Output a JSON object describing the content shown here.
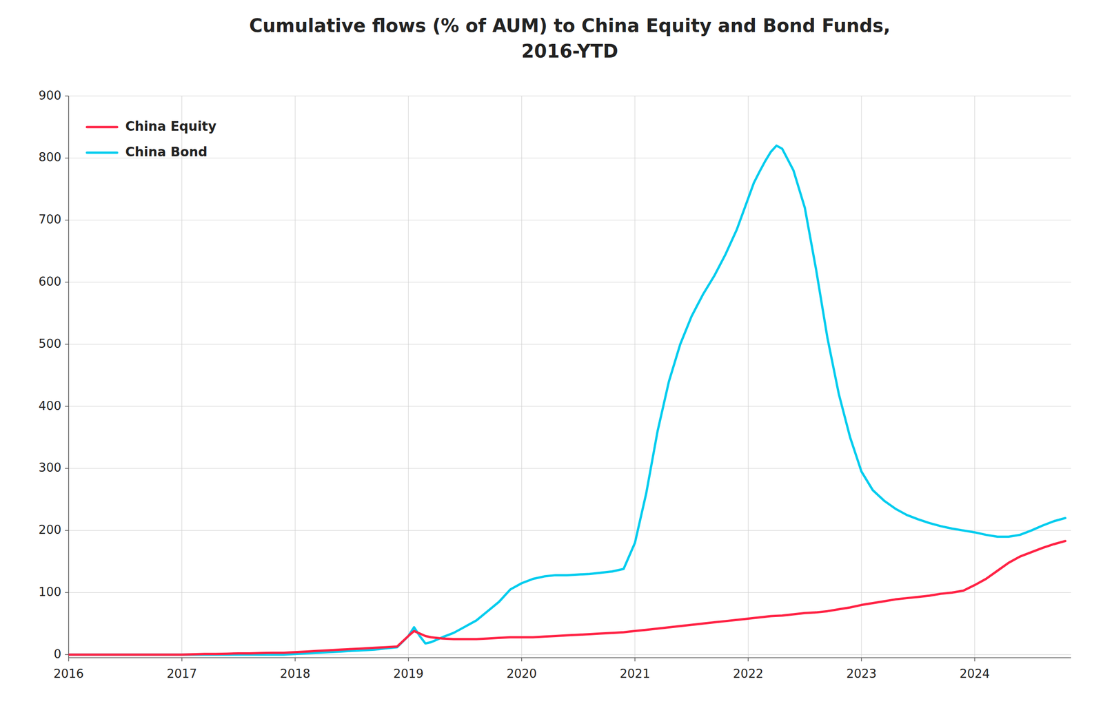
{
  "chart_data": {
    "type": "line",
    "title": "Cumulative flows (% of AUM) to China Equity and Bond Funds,\n2016-YTD",
    "xlim": [
      2016.0,
      2024.85
    ],
    "xticks": [
      2016,
      2017,
      2018,
      2019,
      2020,
      2021,
      2022,
      2023,
      2024
    ],
    "ylim": [
      -5,
      900
    ],
    "yticks": [
      0,
      100,
      200,
      300,
      400,
      500,
      600,
      700,
      800,
      900
    ],
    "grid": true,
    "legend": "upper left",
    "series": [
      {
        "name": "China Equity",
        "color": "#ff2244",
        "x": [
          2016.0,
          2016.1,
          2016.2,
          2016.3,
          2016.4,
          2016.5,
          2016.6,
          2016.7,
          2016.8,
          2016.9,
          2017.0,
          2017.1,
          2017.2,
          2017.3,
          2017.4,
          2017.5,
          2017.6,
          2017.7,
          2017.8,
          2017.9,
          2018.0,
          2018.1,
          2018.2,
          2018.3,
          2018.4,
          2018.5,
          2018.6,
          2018.7,
          2018.8,
          2018.9,
          2019.0,
          2019.05,
          2019.1,
          2019.15,
          2019.2,
          2019.3,
          2019.4,
          2019.5,
          2019.6,
          2019.7,
          2019.8,
          2019.9,
          2020.0,
          2020.1,
          2020.2,
          2020.3,
          2020.4,
          2020.5,
          2020.6,
          2020.7,
          2020.8,
          2020.9,
          2021.0,
          2021.1,
          2021.2,
          2021.3,
          2021.4,
          2021.5,
          2021.6,
          2021.7,
          2021.8,
          2021.9,
          2022.0,
          2022.1,
          2022.2,
          2022.3,
          2022.4,
          2022.5,
          2022.6,
          2022.7,
          2022.8,
          2022.9,
          2023.0,
          2023.1,
          2023.2,
          2023.3,
          2023.4,
          2023.5,
          2023.6,
          2023.7,
          2023.8,
          2023.9,
          2024.0,
          2024.1,
          2024.2,
          2024.3,
          2024.4,
          2024.5,
          2024.6,
          2024.7,
          2024.8
        ],
        "values": [
          0,
          0,
          0,
          0,
          0,
          0,
          0,
          0,
          0,
          0,
          0,
          0.5,
          1,
          1,
          1.5,
          2,
          2,
          2.5,
          3,
          3,
          4,
          5,
          6,
          7,
          8,
          9,
          10,
          11,
          12,
          13,
          30,
          38,
          34,
          30,
          28,
          26,
          25,
          25,
          25,
          26,
          27,
          28,
          28,
          28,
          29,
          30,
          31,
          32,
          33,
          34,
          35,
          36,
          38,
          40,
          42,
          44,
          46,
          48,
          50,
          52,
          54,
          56,
          58,
          60,
          62,
          63,
          65,
          67,
          68,
          70,
          73,
          76,
          80,
          83,
          86,
          89,
          91,
          93,
          95,
          98,
          100,
          103,
          112,
          122,
          135,
          148,
          158,
          165,
          172,
          178,
          183
        ]
      },
      {
        "name": "China Bond",
        "color": "#00ccee",
        "x": [
          2016.0,
          2016.1,
          2016.2,
          2016.3,
          2016.4,
          2016.5,
          2016.6,
          2016.7,
          2016.8,
          2016.9,
          2017.0,
          2017.1,
          2017.2,
          2017.3,
          2017.4,
          2017.5,
          2017.6,
          2017.7,
          2017.8,
          2017.9,
          2018.0,
          2018.1,
          2018.2,
          2018.3,
          2018.4,
          2018.5,
          2018.6,
          2018.7,
          2018.8,
          2018.9,
          2019.0,
          2019.05,
          2019.1,
          2019.15,
          2019.2,
          2019.25,
          2019.3,
          2019.4,
          2019.5,
          2019.6,
          2019.7,
          2019.8,
          2019.9,
          2020.0,
          2020.1,
          2020.2,
          2020.3,
          2020.4,
          2020.5,
          2020.6,
          2020.7,
          2020.8,
          2020.9,
          2021.0,
          2021.1,
          2021.2,
          2021.3,
          2021.4,
          2021.5,
          2021.6,
          2021.7,
          2021.8,
          2021.9,
          2022.0,
          2022.05,
          2022.1,
          2022.15,
          2022.2,
          2022.25,
          2022.3,
          2022.4,
          2022.5,
          2022.6,
          2022.7,
          2022.8,
          2022.9,
          2023.0,
          2023.1,
          2023.2,
          2023.3,
          2023.4,
          2023.5,
          2023.6,
          2023.7,
          2023.8,
          2023.9,
          2024.0,
          2024.1,
          2024.2,
          2024.3,
          2024.4,
          2024.5,
          2024.6,
          2024.7,
          2024.8
        ],
        "values": [
          0,
          0,
          0,
          0,
          0,
          0,
          0,
          0,
          0,
          0,
          0,
          0,
          0,
          0,
          0,
          0,
          0,
          0,
          0,
          0,
          1,
          2,
          3,
          4,
          5,
          6,
          7,
          8,
          10,
          12,
          30,
          44,
          30,
          18,
          20,
          24,
          28,
          35,
          45,
          55,
          70,
          85,
          105,
          115,
          122,
          126,
          128,
          128,
          129,
          130,
          132,
          134,
          138,
          180,
          260,
          360,
          440,
          500,
          545,
          580,
          610,
          645,
          685,
          735,
          760,
          778,
          795,
          810,
          820,
          815,
          780,
          720,
          620,
          510,
          420,
          350,
          295,
          265,
          248,
          235,
          225,
          218,
          212,
          207,
          203,
          200,
          197,
          193,
          190,
          190,
          193,
          200,
          208,
          215,
          220
        ]
      }
    ]
  }
}
